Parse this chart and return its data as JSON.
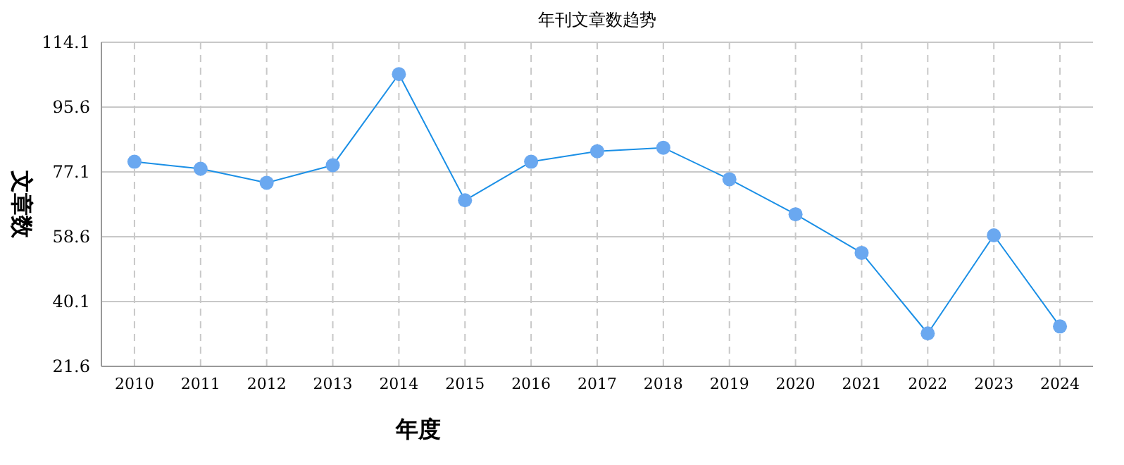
{
  "chart_data": {
    "type": "line",
    "title": "年刊文章数趋势",
    "xlabel": "年度",
    "ylabel": "文章数",
    "categories": [
      "2010",
      "2011",
      "2012",
      "2013",
      "2014",
      "2015",
      "2016",
      "2017",
      "2018",
      "2019",
      "2020",
      "2021",
      "2022",
      "2023",
      "2024"
    ],
    "series": [
      {
        "color": "#1a8fe6",
        "colors": [
          "#6aa8f0",
          "#6aa8f0",
          "#6aa8f0",
          "#6aa8f0",
          "#6aa8f0",
          "#6aa8f0",
          "#6aa8f0",
          "#6aa8f0",
          "#6aa8f0",
          "#6aa8f0",
          "#6aa8f0",
          "#6aa8f0",
          "#6aa8f0",
          "#6aa8f0",
          "#6aa8f0"
        ],
        "values": [
          80,
          78,
          74,
          79,
          105,
          69,
          80,
          83,
          84,
          75,
          65,
          54,
          31,
          59,
          33
        ]
      }
    ],
    "ylim": [
      21.6,
      114.1
    ],
    "yticks": [
      21.6,
      40.1,
      58.6,
      77.1,
      95.6,
      114.1
    ],
    "grid": true,
    "marker": "circle",
    "line_style": "solid"
  }
}
